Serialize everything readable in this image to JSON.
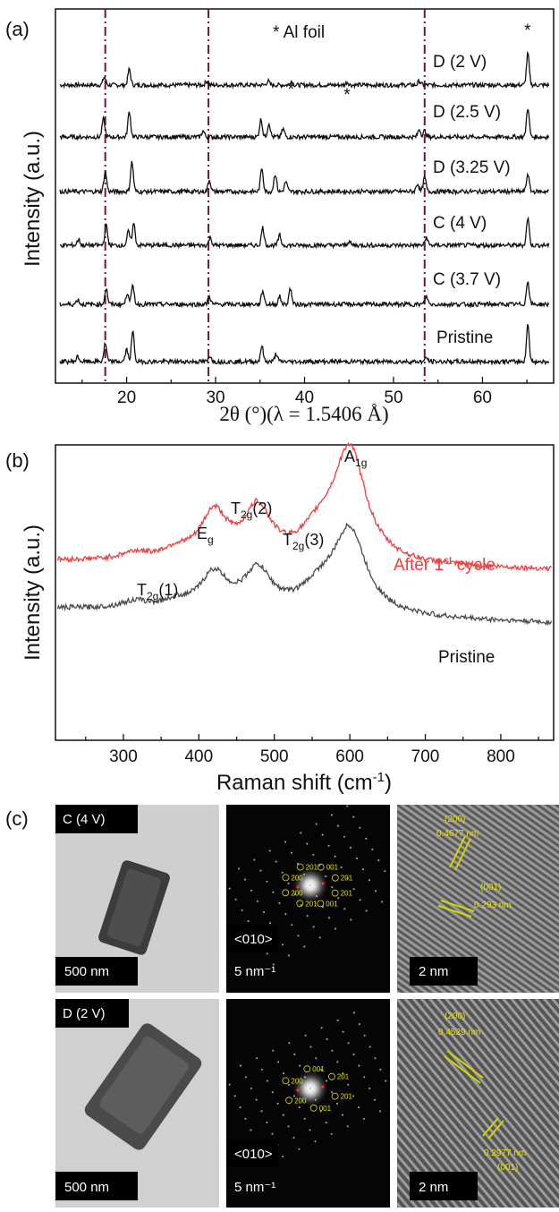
{
  "chart_data": [
    {
      "panel": "(a)",
      "type": "line",
      "title": "",
      "xlabel": "2θ (°)(λ = 1.5406 Å)",
      "ylabel": "Intensity (a.u.)",
      "xlim": [
        12,
        68
      ],
      "x_ticks": [
        20,
        30,
        40,
        50,
        60
      ],
      "y_ticks_shown": false,
      "annotation": "* Al foil",
      "star_markers_x": [
        38.5,
        44.8,
        65.1
      ],
      "reference_lines_x": [
        17.6,
        29.2,
        53.5
      ],
      "reference_line_color": "#7a1040",
      "peaks_note": "approximate peak positions (2θ) per trace; no numeric intensity scale shown",
      "series": [
        {
          "name": "D (2 V)",
          "color": "#111111",
          "peaks": [
            [
              17.5,
              0.4
            ],
            [
              20.3,
              0.8
            ],
            [
              29.0,
              0.2
            ],
            [
              35.9,
              0.2
            ],
            [
              38.5,
              0.2
            ],
            [
              44.8,
              0.15
            ],
            [
              52.9,
              0.2
            ],
            [
              65.1,
              1.6
            ]
          ]
        },
        {
          "name": "D (2.5 V)",
          "color": "#111111",
          "peaks": [
            [
              17.4,
              0.9
            ],
            [
              20.3,
              1.3
            ],
            [
              28.6,
              0.3
            ],
            [
              35.1,
              0.9
            ],
            [
              36.0,
              0.7
            ],
            [
              37.6,
              0.4
            ],
            [
              52.9,
              0.4
            ],
            [
              53.5,
              0.3
            ],
            [
              65.1,
              1.5
            ]
          ]
        },
        {
          "name": "D (3.25 V)",
          "color": "#111111",
          "peaks": [
            [
              17.6,
              1.0
            ],
            [
              20.6,
              1.5
            ],
            [
              29.3,
              0.6
            ],
            [
              35.2,
              1.2
            ],
            [
              36.7,
              0.9
            ],
            [
              37.9,
              0.5
            ],
            [
              52.7,
              0.4
            ],
            [
              53.5,
              0.7
            ],
            [
              65.1,
              0.9
            ]
          ]
        },
        {
          "name": "C (4 V)",
          "color": "#111111",
          "peaks": [
            [
              14.6,
              0.3
            ],
            [
              17.7,
              1.0
            ],
            [
              20.2,
              0.7
            ],
            [
              20.8,
              1.1
            ],
            [
              29.4,
              0.4
            ],
            [
              35.3,
              0.9
            ],
            [
              37.2,
              0.5
            ],
            [
              45.0,
              0.2
            ],
            [
              53.7,
              0.4
            ],
            [
              65.1,
              1.4
            ]
          ]
        },
        {
          "name": "C (3.7 V)",
          "color": "#111111",
          "peaks": [
            [
              14.5,
              0.25
            ],
            [
              17.7,
              0.8
            ],
            [
              20.1,
              0.6
            ],
            [
              20.7,
              0.9
            ],
            [
              29.3,
              0.4
            ],
            [
              35.3,
              0.7
            ],
            [
              37.2,
              0.4
            ],
            [
              38.4,
              0.8
            ],
            [
              53.7,
              0.4
            ],
            [
              65.1,
              1.2
            ]
          ]
        },
        {
          "name": "Pristine",
          "color": "#111111",
          "peaks": [
            [
              14.5,
              0.25
            ],
            [
              17.6,
              0.9
            ],
            [
              20.0,
              0.6
            ],
            [
              20.7,
              1.5
            ],
            [
              29.4,
              0.3
            ],
            [
              35.2,
              0.8
            ],
            [
              36.8,
              0.4
            ],
            [
              53.7,
              0.2
            ],
            [
              65.1,
              1.9
            ]
          ]
        }
      ]
    },
    {
      "panel": "(b)",
      "type": "line",
      "title": "",
      "xlabel": "Raman shift (cm⁻¹)",
      "ylabel": "Intensity (a.u.)",
      "xlim": [
        210,
        870
      ],
      "x_ticks": [
        300,
        400,
        500,
        600,
        700,
        800
      ],
      "y_ticks_shown": false,
      "band_labels": [
        "T2g(1)",
        "Eg",
        "T2g(2)",
        "T2g(3)",
        "A1g"
      ],
      "band_positions": [
        315,
        420,
        478,
        560,
        600
      ],
      "series": [
        {
          "name": "After 1st cycle",
          "color": "#f03c3c",
          "bands": [
            [
              315,
              0.1
            ],
            [
              370,
              0.12
            ],
            [
              420,
              0.65
            ],
            [
              478,
              0.7
            ],
            [
              560,
              0.35
            ],
            [
              600,
              1.55
            ]
          ]
        },
        {
          "name": "Pristine",
          "color": "#4a4a4a",
          "bands": [
            [
              315,
              0.1
            ],
            [
              370,
              0.1
            ],
            [
              420,
              0.5
            ],
            [
              478,
              0.55
            ],
            [
              560,
              0.3
            ],
            [
              600,
              1.15
            ]
          ]
        }
      ]
    }
  ],
  "panel_c": {
    "letter": "(c)",
    "rows": [
      {
        "tem_label": "C (4 V)",
        "tem_scale": "500 nm",
        "saed_zone": "<010>",
        "saed_scale": "5 nm⁻¹",
        "saed_spots": [
          "201",
          "001",
          "201",
          "200",
          "200",
          "201",
          "001",
          "201"
        ],
        "hrtem_scale": "2 nm",
        "hrtem_planes": [
          "(200)",
          "0.4677 nm",
          "(001)",
          "0.293 nm"
        ]
      },
      {
        "tem_label": "D (2 V)",
        "tem_scale": "500 nm",
        "saed_zone": "<010>",
        "saed_scale": "5 nm⁻¹",
        "saed_spots": [
          "201",
          "001",
          "200",
          "200",
          "001",
          "201"
        ],
        "hrtem_scale": "2 nm",
        "hrtem_planes": [
          "(200)",
          "0.4529 nm",
          "0.2977 nm",
          "(001)"
        ]
      }
    ]
  }
}
